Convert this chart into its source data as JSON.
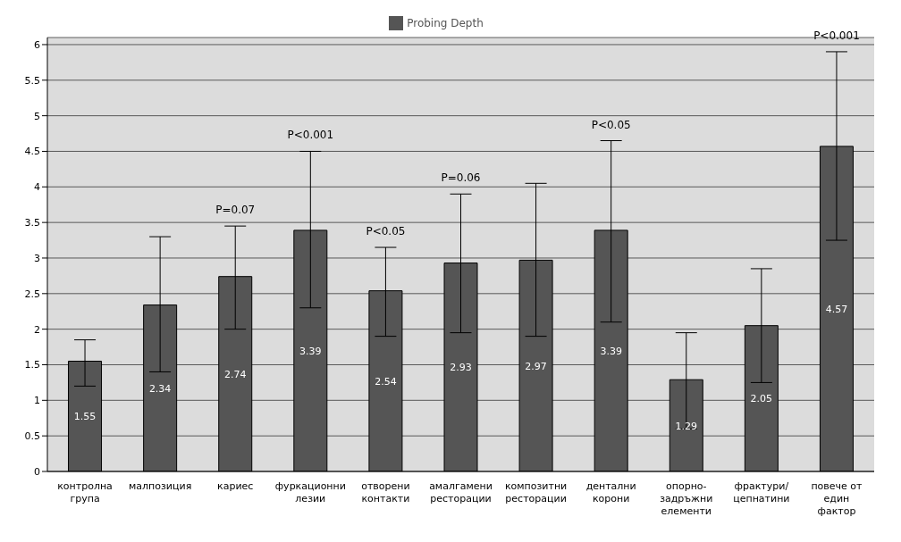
{
  "chart_data": {
    "type": "bar",
    "categories": [
      "контролна група",
      "малпозиция",
      "кариес",
      "фуркационни лезии",
      "отворени контакти",
      "амалгамени ресторации",
      "композитни ресторации",
      "дентални корони",
      "опорно-задръжни елементи",
      "фрактури/ цепнатини",
      "повече от един фактор"
    ],
    "series": [
      {
        "name": "Probing Depth",
        "color": "#555555",
        "values": [
          1.55,
          2.34,
          2.74,
          3.39,
          2.54,
          2.93,
          2.97,
          3.39,
          1.29,
          2.05,
          4.57
        ],
        "errors": [
          [
            1.2,
            1.85
          ],
          [
            1.4,
            3.3
          ],
          [
            2.0,
            3.45
          ],
          [
            2.3,
            4.5
          ],
          [
            1.9,
            3.15
          ],
          [
            1.95,
            3.9
          ],
          [
            1.9,
            4.05
          ],
          [
            2.1,
            4.65
          ],
          [
            0.6,
            1.95
          ],
          [
            1.25,
            2.85
          ],
          [
            3.25,
            5.9
          ]
        ]
      }
    ],
    "ylim": [
      0,
      6.1
    ],
    "yticks": [
      0,
      0.5,
      1,
      1.5,
      2,
      2.5,
      3,
      3.5,
      4,
      4.5,
      5,
      5.5,
      6
    ],
    "grid": "y",
    "legend": "top",
    "data_labels": true,
    "annotations": [
      "P=0.07",
      "P<0.001",
      "P<0.05",
      "P=0.06",
      "P<0.05",
      "P<0.001"
    ]
  }
}
